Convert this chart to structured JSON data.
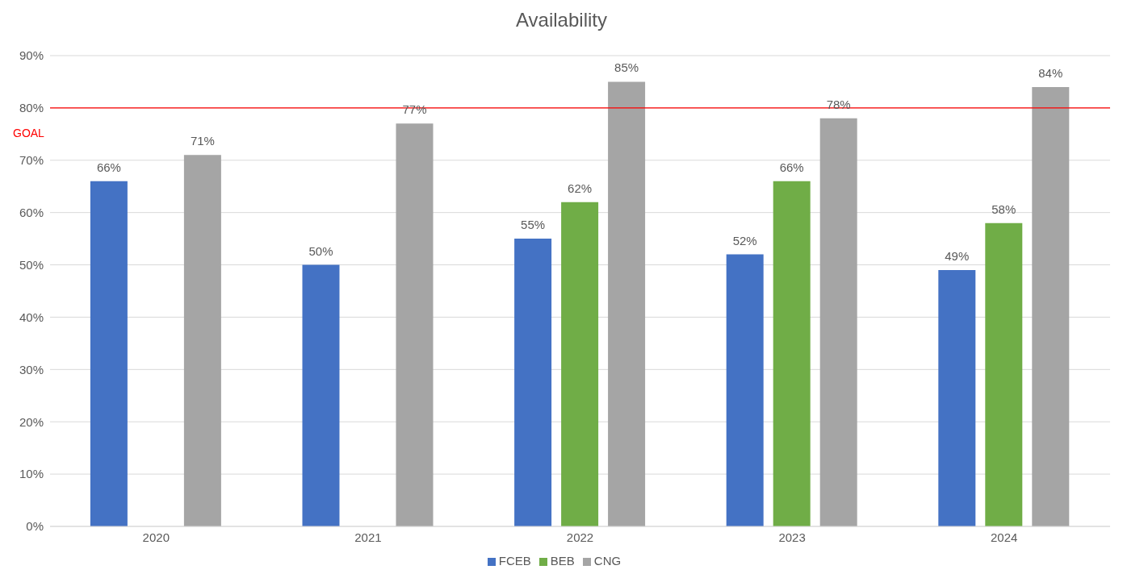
{
  "chart_data": {
    "type": "bar",
    "title": "Availability",
    "categories": [
      "2020",
      "2021",
      "2022",
      "2023",
      "2024"
    ],
    "series": [
      {
        "name": "FCEB",
        "color": "#4472c4",
        "values": [
          66,
          50,
          55,
          52,
          49
        ],
        "value_labels": [
          "66%",
          "50%",
          "55%",
          "52%",
          "49%"
        ]
      },
      {
        "name": "BEB",
        "color": "#70ad47",
        "values": [
          null,
          null,
          62,
          66,
          58
        ],
        "value_labels": [
          null,
          null,
          "62%",
          "66%",
          "58%"
        ]
      },
      {
        "name": "CNG",
        "color": "#a5a5a5",
        "values": [
          71,
          77,
          85,
          78,
          84
        ],
        "value_labels": [
          "71%",
          "77%",
          "85%",
          "78%",
          "84%"
        ]
      }
    ],
    "ylim": [
      0,
      90
    ],
    "yticks": [
      {
        "value": 0,
        "label": "0%"
      },
      {
        "value": 10,
        "label": "10%"
      },
      {
        "value": 20,
        "label": "20%"
      },
      {
        "value": 30,
        "label": "30%"
      },
      {
        "value": 40,
        "label": "40%"
      },
      {
        "value": 50,
        "label": "50%"
      },
      {
        "value": 60,
        "label": "60%"
      },
      {
        "value": 70,
        "label": "70%"
      },
      {
        "value": 80,
        "label": "80%"
      },
      {
        "value": 90,
        "label": "90%"
      }
    ],
    "ref_lines": [
      {
        "axis": "y",
        "value": 80,
        "label": "GOAL",
        "color": "#ff0000"
      }
    ],
    "grid": "y",
    "legend": "bottom"
  }
}
